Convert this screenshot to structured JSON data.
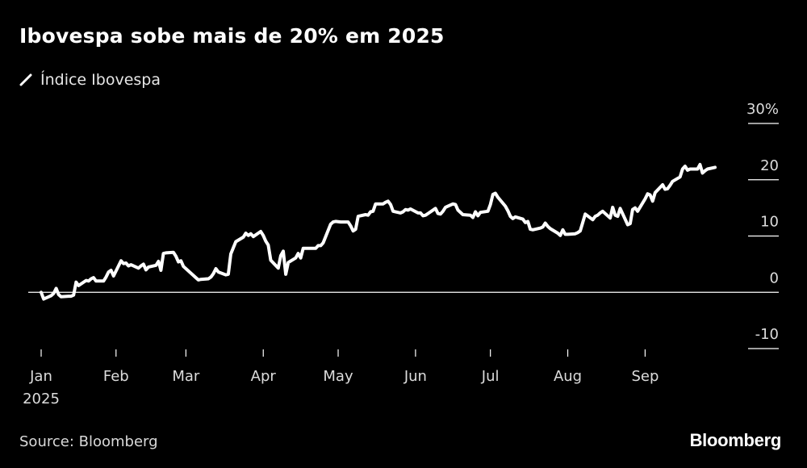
{
  "title": "Ibovespa sobe mais de 20% em 2025",
  "legend_label": "Índice Ibovespa",
  "source": "Source: Bloomberg",
  "brand": "Bloomberg",
  "colors": {
    "background": "#000000",
    "line": "#ffffff",
    "grid": "#ffffff",
    "text": "#dcdcdc"
  },
  "chart_data": {
    "type": "line",
    "title": "Ibovespa sobe mais de 20% em 2025",
    "ylabel": "",
    "xlabel": "",
    "ylim": [
      -10,
      30
    ],
    "y_ticks": [
      30,
      20,
      10,
      0,
      -10
    ],
    "y_tick_labels": [
      "30%",
      "20",
      "10",
      "0",
      "-10"
    ],
    "x_tick_labels": [
      "Jan",
      "Feb",
      "Mar",
      "Apr",
      "May",
      "Jun",
      "Jul",
      "Aug",
      "Sep"
    ],
    "x_year_label": "2025",
    "zero_line": true,
    "legend_position": "top-left",
    "series": [
      {
        "name": "Índice Ibovespa",
        "x": [
          "2025-01-02",
          "2025-01-03",
          "2025-01-06",
          "2025-01-07",
          "2025-01-08",
          "2025-01-09",
          "2025-01-10",
          "2025-01-13",
          "2025-01-14",
          "2025-01-15",
          "2025-01-16",
          "2025-01-17",
          "2025-01-20",
          "2025-01-21",
          "2025-01-22",
          "2025-01-23",
          "2025-01-24",
          "2025-01-27",
          "2025-01-28",
          "2025-01-29",
          "2025-01-30",
          "2025-01-31",
          "2025-02-03",
          "2025-02-04",
          "2025-02-05",
          "2025-02-06",
          "2025-02-07",
          "2025-02-10",
          "2025-02-11",
          "2025-02-12",
          "2025-02-13",
          "2025-02-14",
          "2025-02-17",
          "2025-02-18",
          "2025-02-19",
          "2025-02-20",
          "2025-02-21",
          "2025-02-24",
          "2025-02-25",
          "2025-02-26",
          "2025-02-27",
          "2025-02-28",
          "2025-03-05",
          "2025-03-06",
          "2025-03-07",
          "2025-03-10",
          "2025-03-11",
          "2025-03-12",
          "2025-03-13",
          "2025-03-14",
          "2025-03-17",
          "2025-03-18",
          "2025-03-19",
          "2025-03-20",
          "2025-03-21",
          "2025-03-24",
          "2025-03-25",
          "2025-03-26",
          "2025-03-27",
          "2025-03-28",
          "2025-03-31",
          "2025-04-01",
          "2025-04-02",
          "2025-04-03",
          "2025-04-04",
          "2025-04-07",
          "2025-04-08",
          "2025-04-09",
          "2025-04-10",
          "2025-04-11",
          "2025-04-14",
          "2025-04-15",
          "2025-04-16",
          "2025-04-17",
          "2025-04-22",
          "2025-04-23",
          "2025-04-24",
          "2025-04-25",
          "2025-04-28",
          "2025-04-29",
          "2025-04-30",
          "2025-05-02",
          "2025-05-05",
          "2025-05-06",
          "2025-05-07",
          "2025-05-08",
          "2025-05-09",
          "2025-05-12",
          "2025-05-13",
          "2025-05-14",
          "2025-05-15",
          "2025-05-16",
          "2025-05-19",
          "2025-05-20",
          "2025-05-21",
          "2025-05-22",
          "2025-05-23",
          "2025-05-26",
          "2025-05-27",
          "2025-05-28",
          "2025-05-29",
          "2025-05-30",
          "2025-06-02",
          "2025-06-03",
          "2025-06-04",
          "2025-06-05",
          "2025-06-06",
          "2025-06-09",
          "2025-06-10",
          "2025-06-11",
          "2025-06-12",
          "2025-06-13",
          "2025-06-16",
          "2025-06-17",
          "2025-06-18",
          "2025-06-20",
          "2025-06-23",
          "2025-06-24",
          "2025-06-25",
          "2025-06-26",
          "2025-06-27",
          "2025-06-30",
          "2025-07-01",
          "2025-07-02",
          "2025-07-03",
          "2025-07-04",
          "2025-07-07",
          "2025-07-08",
          "2025-07-09",
          "2025-07-10",
          "2025-07-11",
          "2025-07-14",
          "2025-07-15",
          "2025-07-16",
          "2025-07-17",
          "2025-07-18",
          "2025-07-21",
          "2025-07-22",
          "2025-07-23",
          "2025-07-24",
          "2025-07-25",
          "2025-07-28",
          "2025-07-29",
          "2025-07-30",
          "2025-07-31",
          "2025-08-01",
          "2025-08-04",
          "2025-08-05",
          "2025-08-06",
          "2025-08-07",
          "2025-08-08",
          "2025-08-11",
          "2025-08-12",
          "2025-08-13",
          "2025-08-14",
          "2025-08-15",
          "2025-08-18",
          "2025-08-19",
          "2025-08-20",
          "2025-08-21",
          "2025-08-22",
          "2025-08-25",
          "2025-08-26",
          "2025-08-27",
          "2025-08-28",
          "2025-08-29",
          "2025-09-01",
          "2025-09-02",
          "2025-09-03",
          "2025-09-04",
          "2025-09-05",
          "2025-09-08",
          "2025-09-09",
          "2025-09-10",
          "2025-09-11",
          "2025-09-12",
          "2025-09-15",
          "2025-09-16",
          "2025-09-17",
          "2025-09-18",
          "2025-09-19",
          "2025-09-22",
          "2025-09-23",
          "2025-09-24",
          "2025-09-25",
          "2025-09-26",
          "2025-09-29"
        ],
        "values": [
          0.0,
          -1.2,
          -0.6,
          -0.2,
          0.7,
          -0.4,
          -0.8,
          -0.7,
          -0.7,
          -0.5,
          1.8,
          1.2,
          2.1,
          2.0,
          2.4,
          2.6,
          2.0,
          2.0,
          2.7,
          3.6,
          3.9,
          2.9,
          5.6,
          5.1,
          5.2,
          4.7,
          4.9,
          4.3,
          4.7,
          5.0,
          4.0,
          4.5,
          4.8,
          5.5,
          3.9,
          6.9,
          7.0,
          7.1,
          6.4,
          5.4,
          5.6,
          4.6,
          2.6,
          2.2,
          2.3,
          2.4,
          2.7,
          3.3,
          4.2,
          3.6,
          3.1,
          3.2,
          6.8,
          7.9,
          9.0,
          9.8,
          10.5,
          10.1,
          10.4,
          9.9,
          10.8,
          10.1,
          9.1,
          8.4,
          5.7,
          4.3,
          6.5,
          7.3,
          3.2,
          5.3,
          6.1,
          6.9,
          6.1,
          7.8,
          7.8,
          8.3,
          8.3,
          8.8,
          12.1,
          12.5,
          12.6,
          12.5,
          12.5,
          11.8,
          10.9,
          11.2,
          13.5,
          13.8,
          13.7,
          14.3,
          14.4,
          15.7,
          15.7,
          16.0,
          16.2,
          15.6,
          14.4,
          14.1,
          14.3,
          14.7,
          14.6,
          14.8,
          14.1,
          14.1,
          13.6,
          13.7,
          14.0,
          14.9,
          14.0,
          13.9,
          14.4,
          15.1,
          15.7,
          15.6,
          14.6,
          13.8,
          13.7,
          13.3,
          14.3,
          13.6,
          14.2,
          14.4,
          15.6,
          17.4,
          17.6,
          16.9,
          15.3,
          14.5,
          13.5,
          13.1,
          13.4,
          13.0,
          12.4,
          12.6,
          11.2,
          11.1,
          11.4,
          11.6,
          12.3,
          11.7,
          11.3,
          10.5,
          10.1,
          11.1,
          10.3,
          10.3,
          10.4,
          10.6,
          10.9,
          12.4,
          13.9,
          12.9,
          13.5,
          13.7,
          14.1,
          14.4,
          13.2,
          15.1,
          13.7,
          13.5,
          14.9,
          12.0,
          12.2,
          14.7,
          15.0,
          14.4,
          16.6,
          17.5,
          17.3,
          16.2,
          17.7,
          19.1,
          18.3,
          18.4,
          19.0,
          19.7,
          20.5,
          21.9,
          22.4,
          21.7,
          21.9,
          21.9,
          22.7,
          21.2,
          21.6,
          21.9,
          22.2
        ]
      }
    ]
  }
}
